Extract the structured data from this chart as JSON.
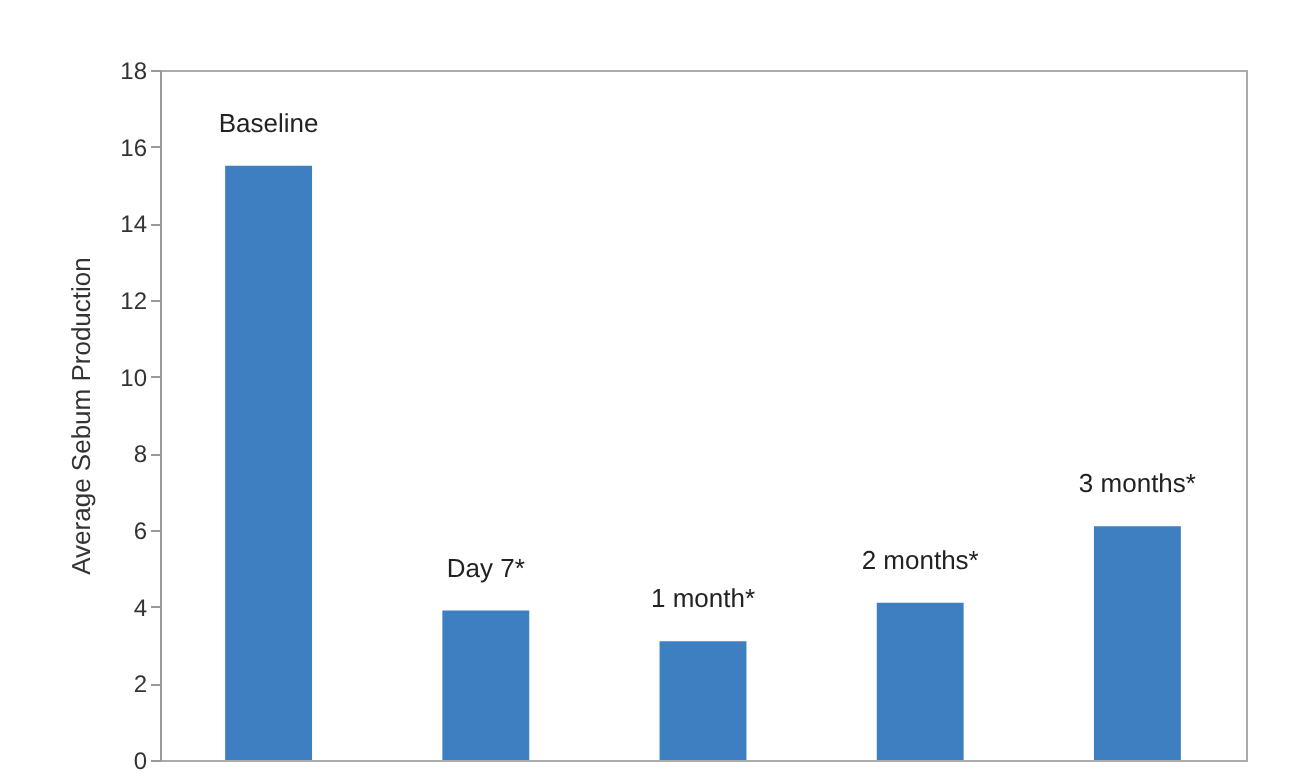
{
  "chart_data": {
    "type": "bar",
    "ylabel": "Average Sebum Production",
    "categories": [
      "Baseline",
      "Day 7*",
      "1 month*",
      "2 months*",
      "3 months*"
    ],
    "values": [
      15.5,
      3.9,
      3.1,
      4.1,
      6.1
    ],
    "color": "#3d7fc0",
    "ylim": [
      0,
      18
    ],
    "yticks": [
      0,
      2,
      4,
      6,
      8,
      10,
      12,
      14,
      16,
      18
    ],
    "grid": false
  }
}
